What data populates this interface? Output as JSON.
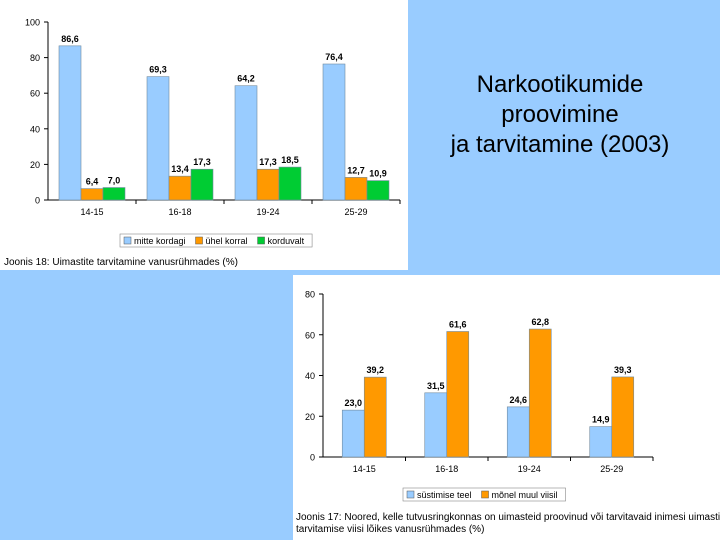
{
  "slide": {
    "title_lines": [
      "Narkootikumide",
      "proovimine",
      "ja tarvitamine (2003)"
    ]
  },
  "chart_data": [
    {
      "type": "bar",
      "title": "",
      "caption": "Joonis 18: Uimastite tarvitamine vanusrühmades (%)",
      "categories": [
        "14-15",
        "16-18",
        "19-24",
        "25-29"
      ],
      "series": [
        {
          "name": "mitte kordagi",
          "color": "#99ccff",
          "values": [
            86.6,
            69.3,
            64.2,
            76.4
          ],
          "labels": [
            "86,6",
            "69,3",
            "64,2",
            "76,4"
          ]
        },
        {
          "name": "ühel korral",
          "color": "#ff9900",
          "values": [
            6.4,
            13.4,
            17.3,
            12.7
          ],
          "labels": [
            "6,4",
            "13,4",
            "17,3",
            "12,7"
          ]
        },
        {
          "name": "korduvalt",
          "color": "#00cc33",
          "values": [
            7.0,
            17.3,
            18.5,
            10.9
          ],
          "labels": [
            "7,0",
            "17,3",
            "18,5",
            "10,9"
          ]
        }
      ],
      "ylim": [
        0,
        100
      ],
      "yticks": [
        "0",
        "20",
        "40",
        "60",
        "80",
        "100"
      ],
      "ytick_values": [
        0,
        20,
        40,
        60,
        80,
        100
      ],
      "legend": "bottom"
    },
    {
      "type": "bar",
      "title": "",
      "caption_lines": [
        "Joonis 17: Noored, kelle tutvusringkonnas on uimasteid proovinud või tarvitavaid inimesi uimasti",
        "tarvitamise viisi lõikes vanusrühmades (%)"
      ],
      "categories": [
        "14-15",
        "16-18",
        "19-24",
        "25-29"
      ],
      "series": [
        {
          "name": "süstimise teel",
          "color": "#99ccff",
          "values": [
            23.0,
            31.5,
            24.6,
            14.9
          ],
          "labels": [
            "23,0",
            "31,5",
            "24,6",
            "14,9"
          ]
        },
        {
          "name": "mõnel muul viisil",
          "color": "#ff9900",
          "values": [
            39.2,
            61.6,
            62.8,
            39.3
          ],
          "labels": [
            "39,2",
            "61,6",
            "62,8",
            "39,3"
          ]
        }
      ],
      "ylim": [
        0,
        80
      ],
      "yticks": [
        "0",
        "20",
        "40",
        "60",
        "80"
      ],
      "ytick_values": [
        0,
        20,
        40,
        60,
        80
      ],
      "legend": "bottom"
    }
  ]
}
